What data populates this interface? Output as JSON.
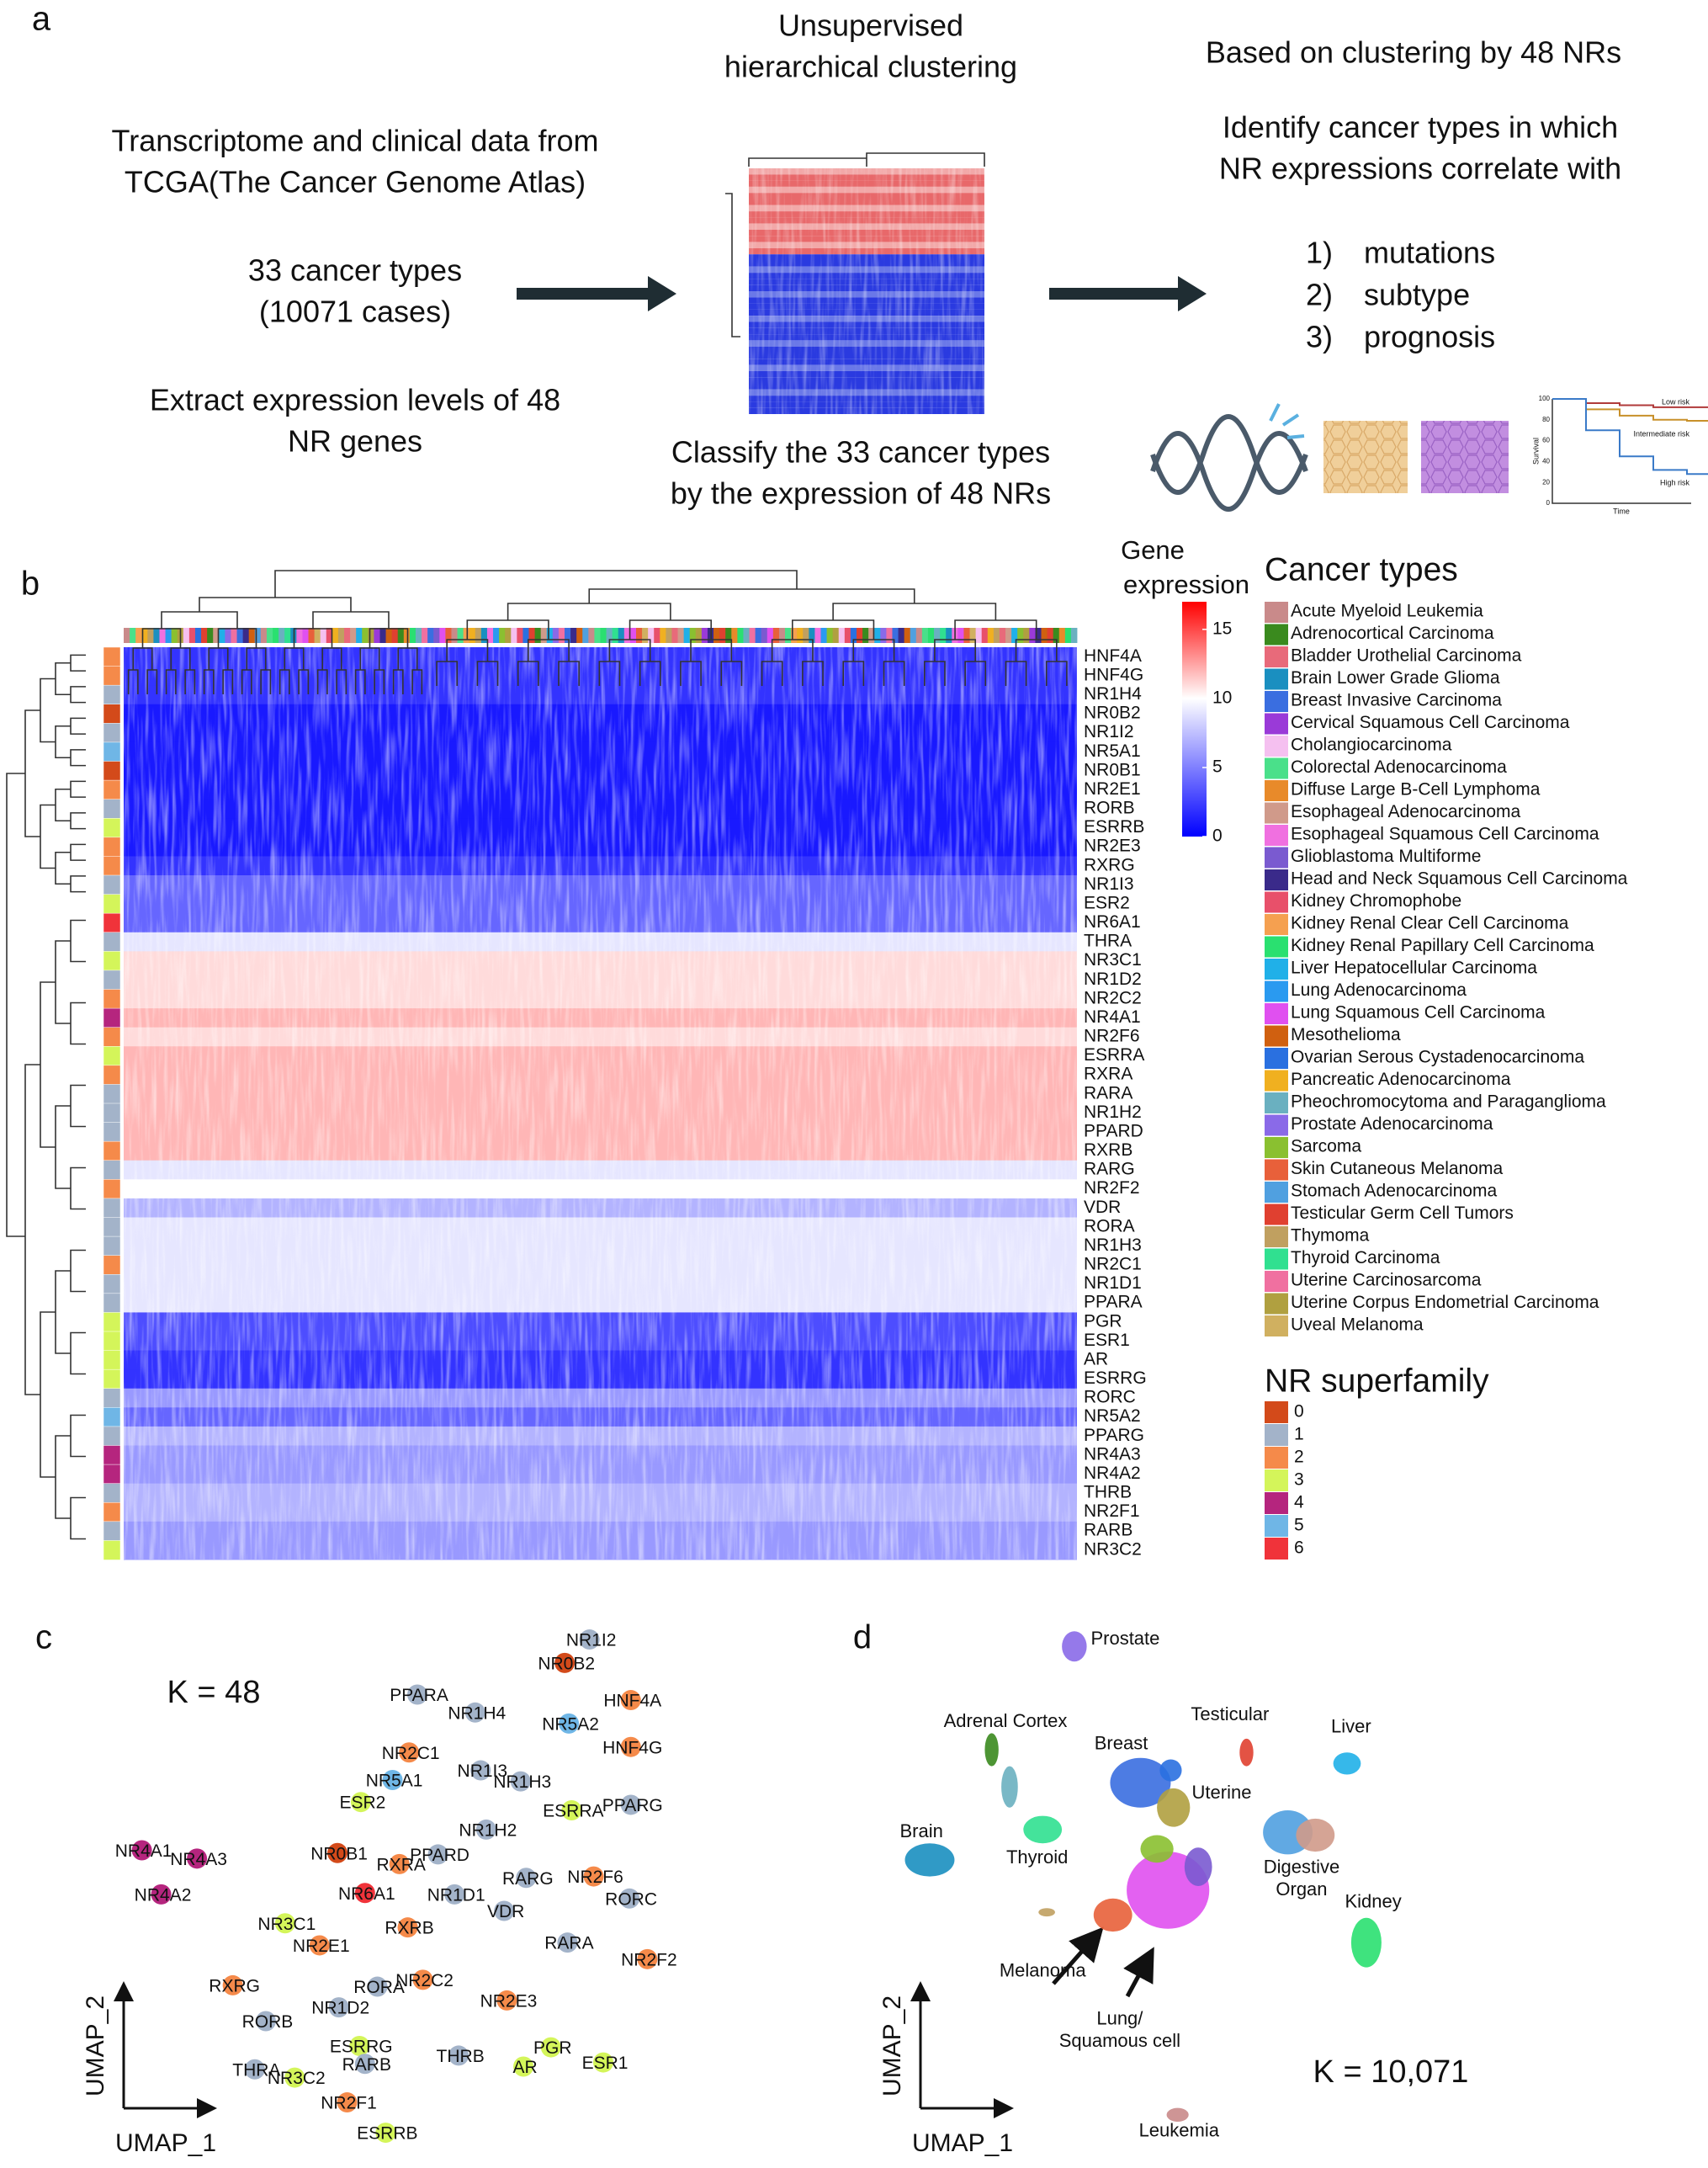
{
  "panel_a": {
    "label": "a",
    "left_texts": [
      [
        "Transcriptome and clinical data from",
        "TCGA(The Cancer Genome Atlas)"
      ],
      [
        "33 cancer types",
        "(10071 cases)"
      ],
      [
        "Extract expression levels of 48",
        "NR genes"
      ]
    ],
    "middle_top": [
      "Unsupervised",
      "hierarchical clustering"
    ],
    "middle_bottom": [
      "Classify the 33 cancer types",
      "by the expression of 48 NRs"
    ],
    "right_top": "Based on clustering by 48 NRs",
    "right_mid": [
      "Identify cancer types in which",
      "NR expressions correlate with"
    ],
    "outcomes": [
      {
        "num": "1)",
        "text": "mutations"
      },
      {
        "num": "2)",
        "text": "subtype"
      },
      {
        "num": "3)",
        "text": "prognosis"
      }
    ],
    "km_plot": {
      "y_label": "Survival",
      "x_label": "Time",
      "ylim": [
        0,
        100
      ],
      "yticks": [
        0,
        20,
        40,
        60,
        80,
        100
      ],
      "groups": [
        {
          "name": "Low risk",
          "color": "#b03a3a"
        },
        {
          "name": "Intermediate risk",
          "color": "#c8902a"
        },
        {
          "name": "High risk",
          "color": "#3a7ac8"
        }
      ]
    }
  },
  "panel_b": {
    "label": "b",
    "colorbar": {
      "title": [
        "Gene",
        "expression"
      ],
      "lim": [
        0,
        17
      ],
      "ticks": [
        0,
        5,
        10,
        15
      ]
    },
    "genes": [
      {
        "name": "HNF4A",
        "superfamily": 2,
        "level": 2
      },
      {
        "name": "HNF4G",
        "superfamily": 2,
        "level": 2
      },
      {
        "name": "NR1H4",
        "superfamily": 1,
        "level": 2
      },
      {
        "name": "NR0B2",
        "superfamily": 0,
        "level": 1
      },
      {
        "name": "NR1I2",
        "superfamily": 1,
        "level": 1
      },
      {
        "name": "NR5A1",
        "superfamily": 5,
        "level": 1
      },
      {
        "name": "NR0B1",
        "superfamily": 0,
        "level": 1
      },
      {
        "name": "NR2E1",
        "superfamily": 2,
        "level": 1
      },
      {
        "name": "RORB",
        "superfamily": 1,
        "level": 1
      },
      {
        "name": "ESRRB",
        "superfamily": 3,
        "level": 1
      },
      {
        "name": "NR2E3",
        "superfamily": 2,
        "level": 1
      },
      {
        "name": "RXRG",
        "superfamily": 2,
        "level": 2
      },
      {
        "name": "NR1I3",
        "superfamily": 1,
        "level": 4
      },
      {
        "name": "ESR2",
        "superfamily": 3,
        "level": 4
      },
      {
        "name": "NR6A1",
        "superfamily": 6,
        "level": 4
      },
      {
        "name": "THRA",
        "superfamily": 1,
        "level": 9
      },
      {
        "name": "NR3C1",
        "superfamily": 3,
        "level": 11
      },
      {
        "name": "NR1D2",
        "superfamily": 1,
        "level": 11
      },
      {
        "name": "NR2C2",
        "superfamily": 2,
        "level": 11
      },
      {
        "name": "NR4A1",
        "superfamily": 4,
        "level": 12
      },
      {
        "name": "NR2F6",
        "superfamily": 2,
        "level": 11
      },
      {
        "name": "ESRRA",
        "superfamily": 3,
        "level": 12
      },
      {
        "name": "RXRA",
        "superfamily": 2,
        "level": 12
      },
      {
        "name": "RARA",
        "superfamily": 1,
        "level": 12
      },
      {
        "name": "NR1H2",
        "superfamily": 1,
        "level": 12
      },
      {
        "name": "PPARD",
        "superfamily": 1,
        "level": 12
      },
      {
        "name": "RXRB",
        "superfamily": 2,
        "level": 12
      },
      {
        "name": "RARG",
        "superfamily": 1,
        "level": 9
      },
      {
        "name": "NR2F2",
        "superfamily": 2,
        "level": 10
      },
      {
        "name": "VDR",
        "superfamily": 1,
        "level": 7
      },
      {
        "name": "RORA",
        "superfamily": 1,
        "level": 9
      },
      {
        "name": "NR1H3",
        "superfamily": 1,
        "level": 9
      },
      {
        "name": "NR2C1",
        "superfamily": 2,
        "level": 9
      },
      {
        "name": "NR1D1",
        "superfamily": 1,
        "level": 9
      },
      {
        "name": "PPARA",
        "superfamily": 1,
        "level": 9
      },
      {
        "name": "PGR",
        "superfamily": 3,
        "level": 3
      },
      {
        "name": "ESR1",
        "superfamily": 3,
        "level": 3
      },
      {
        "name": "AR",
        "superfamily": 3,
        "level": 2
      },
      {
        "name": "ESRRG",
        "superfamily": 3,
        "level": 2
      },
      {
        "name": "RORC",
        "superfamily": 1,
        "level": 6
      },
      {
        "name": "NR5A2",
        "superfamily": 5,
        "level": 4
      },
      {
        "name": "PPARG",
        "superfamily": 1,
        "level": 7
      },
      {
        "name": "NR4A3",
        "superfamily": 4,
        "level": 6
      },
      {
        "name": "NR4A2",
        "superfamily": 4,
        "level": 6
      },
      {
        "name": "THRB",
        "superfamily": 1,
        "level": 7
      },
      {
        "name": "NR2F1",
        "superfamily": 2,
        "level": 7
      },
      {
        "name": "RARB",
        "superfamily": 1,
        "level": 6
      },
      {
        "name": "NR3C2",
        "superfamily": 3,
        "level": 6
      }
    ],
    "cancer_types_title": "Cancer types",
    "cancer_types": [
      {
        "name": "Acute Myeloid Leukemia",
        "color": "#c98a8a"
      },
      {
        "name": "Adrenocortical Carcinoma",
        "color": "#3a8a1e"
      },
      {
        "name": "Bladder Urothelial Carcinoma",
        "color": "#e86a7a"
      },
      {
        "name": "Brain Lower Grade Glioma",
        "color": "#1a8fc0"
      },
      {
        "name": "Breast Invasive Carcinoma",
        "color": "#3a6ee0"
      },
      {
        "name": "Cervical Squamous Cell Carcinoma",
        "color": "#9a3ad8"
      },
      {
        "name": "Cholangiocarcinoma",
        "color": "#f5c0f0"
      },
      {
        "name": "Colorectal Adenocarcinoma",
        "color": "#4ae08a"
      },
      {
        "name": "Diffuse Large B-Cell Lymphoma",
        "color": "#e88a2a"
      },
      {
        "name": "Esophageal Adenocarcinoma",
        "color": "#d09a8a"
      },
      {
        "name": "Esophageal Squamous Cell Carcinoma",
        "color": "#f070e0"
      },
      {
        "name": "Glioblastoma Multiforme",
        "color": "#7a5ad0"
      },
      {
        "name": "Head and Neck Squamous Cell Carcinoma",
        "color": "#3a2a8a"
      },
      {
        "name": "Kidney Chromophobe",
        "color": "#e8506a"
      },
      {
        "name": "Kidney Renal Clear Cell Carcinoma",
        "color": "#f5a050"
      },
      {
        "name": "Kidney Renal Papillary Cell Carcinoma",
        "color": "#2ae070"
      },
      {
        "name": "Liver Hepatocellular Carcinoma",
        "color": "#20b0e8"
      },
      {
        "name": "Lung Adenocarcinoma",
        "color": "#2a9af0"
      },
      {
        "name": "Lung Squamous Cell Carcinoma",
        "color": "#e050f0"
      },
      {
        "name": "Mesothelioma",
        "color": "#d06010"
      },
      {
        "name": "Ovarian Serous Cystadenocarcinoma",
        "color": "#2a70e0"
      },
      {
        "name": "Pancreatic Adenocarcinoma",
        "color": "#f0b020"
      },
      {
        "name": "Pheochromocytoma and Paraganglioma",
        "color": "#6ab0c0"
      },
      {
        "name": "Prostate Adenocarcinoma",
        "color": "#8a6ae8"
      },
      {
        "name": "Sarcoma",
        "color": "#8ac030"
      },
      {
        "name": "Skin Cutaneous Melanoma",
        "color": "#e8603a"
      },
      {
        "name": "Stomach Adenocarcinoma",
        "color": "#50a0e0"
      },
      {
        "name": "Testicular Germ Cell Tumors",
        "color": "#e04030"
      },
      {
        "name": "Thymoma",
        "color": "#c0a060"
      },
      {
        "name": "Thyroid Carcinoma",
        "color": "#30e090"
      },
      {
        "name": "Uterine Carcinosarcoma",
        "color": "#f070a0"
      },
      {
        "name": "Uterine Corpus Endometrial Carcinoma",
        "color": "#b0a040"
      },
      {
        "name": "Uveal Melanoma",
        "color": "#d0b060"
      }
    ],
    "superfamily_title": "NR superfamily",
    "superfamilies": [
      {
        "id": 0,
        "color": "#d34a1a"
      },
      {
        "id": 1,
        "color": "#a3b3c9"
      },
      {
        "id": 2,
        "color": "#f58a4a"
      },
      {
        "id": 3,
        "color": "#d4f55a"
      },
      {
        "id": 4,
        "color": "#b5257e"
      },
      {
        "id": 5,
        "color": "#6fb6e6"
      },
      {
        "id": 6,
        "color": "#f0333a"
      }
    ]
  },
  "panel_c": {
    "label": "c",
    "k_label": "K = 48",
    "x_label": "UMAP_1",
    "y_label": "UMAP_2",
    "nodes": [
      {
        "name": "NR1I2",
        "x": 33.8,
        "y": 34.0
      },
      {
        "name": "NR0B2",
        "x": 32.0,
        "y": 32.3
      },
      {
        "name": "PPARA",
        "x": 21.3,
        "y": 30.0
      },
      {
        "name": "NR1H4",
        "x": 25.5,
        "y": 28.7
      },
      {
        "name": "HNF4A",
        "x": 36.8,
        "y": 29.6
      },
      {
        "name": "NR5A2",
        "x": 32.3,
        "y": 27.9
      },
      {
        "name": "HNF4G",
        "x": 36.8,
        "y": 26.2
      },
      {
        "name": "NR2C1",
        "x": 20.7,
        "y": 25.8
      },
      {
        "name": "NR1I3",
        "x": 25.9,
        "y": 24.5
      },
      {
        "name": "NR5A1",
        "x": 19.5,
        "y": 23.8
      },
      {
        "name": "NR1H3",
        "x": 28.8,
        "y": 23.7
      },
      {
        "name": "ESR2",
        "x": 17.2,
        "y": 22.2
      },
      {
        "name": "ESRRA",
        "x": 32.5,
        "y": 21.6
      },
      {
        "name": "PPARG",
        "x": 36.8,
        "y": 22.0
      },
      {
        "name": "NR1H2",
        "x": 26.3,
        "y": 20.2
      },
      {
        "name": "NR4A1",
        "x": 1.3,
        "y": 18.7
      },
      {
        "name": "NR4A3",
        "x": 5.3,
        "y": 18.1
      },
      {
        "name": "NR0B1",
        "x": 15.5,
        "y": 18.5
      },
      {
        "name": "PPARD",
        "x": 22.8,
        "y": 18.4
      },
      {
        "name": "RXRA",
        "x": 20.0,
        "y": 17.7
      },
      {
        "name": "NR2F6",
        "x": 34.1,
        "y": 16.8
      },
      {
        "name": "RARG",
        "x": 29.2,
        "y": 16.7
      },
      {
        "name": "NR4A2",
        "x": 2.7,
        "y": 15.5
      },
      {
        "name": "NR6A1",
        "x": 17.5,
        "y": 15.6
      },
      {
        "name": "NR1D1",
        "x": 24.0,
        "y": 15.5
      },
      {
        "name": "RORC",
        "x": 36.7,
        "y": 15.2
      },
      {
        "name": "VDR",
        "x": 27.6,
        "y": 14.3
      },
      {
        "name": "NR3C1",
        "x": 11.7,
        "y": 13.4
      },
      {
        "name": "RXRB",
        "x": 20.6,
        "y": 13.1
      },
      {
        "name": "NR2E1",
        "x": 14.2,
        "y": 11.8
      },
      {
        "name": "RARA",
        "x": 32.2,
        "y": 12.0
      },
      {
        "name": "NR2F2",
        "x": 38.0,
        "y": 10.8
      },
      {
        "name": "NR2C2",
        "x": 21.7,
        "y": 9.3
      },
      {
        "name": "RORA",
        "x": 18.4,
        "y": 8.8
      },
      {
        "name": "RXRG",
        "x": 7.9,
        "y": 8.9
      },
      {
        "name": "NR2E3",
        "x": 27.8,
        "y": 7.8
      },
      {
        "name": "NR1D2",
        "x": 15.6,
        "y": 7.3
      },
      {
        "name": "RORB",
        "x": 10.3,
        "y": 6.3
      },
      {
        "name": "ESRRG",
        "x": 17.1,
        "y": 4.5
      },
      {
        "name": "PGR",
        "x": 31.0,
        "y": 4.4
      },
      {
        "name": "RARB",
        "x": 17.5,
        "y": 3.2
      },
      {
        "name": "THRB",
        "x": 24.3,
        "y": 3.8
      },
      {
        "name": "AR",
        "x": 29.0,
        "y": 3.0
      },
      {
        "name": "ESR1",
        "x": 34.8,
        "y": 3.3
      },
      {
        "name": "THRA",
        "x": 9.5,
        "y": 2.8
      },
      {
        "name": "NR3C2",
        "x": 12.4,
        "y": 2.2
      },
      {
        "name": "NR2F1",
        "x": 16.2,
        "y": 0.4
      },
      {
        "name": "ESRRB",
        "x": 19.0,
        "y": -1.8
      }
    ]
  },
  "panel_d": {
    "label": "d",
    "k_label": "K = 10,071",
    "x_label": "UMAP_1",
    "y_label": "UMAP_2",
    "clusters": [
      [
        "Prostate"
      ],
      [
        "Adrenal Cortex"
      ],
      [
        "Testicular"
      ],
      [
        "Liver"
      ],
      [
        "Breast"
      ],
      [
        "Uterine"
      ],
      [
        "Brain"
      ],
      [
        "Thyroid"
      ],
      [
        "Digestive",
        "Organ"
      ],
      [
        "Kidney"
      ],
      [
        "Melanoma"
      ],
      [
        "Lung/",
        "Squamous cell"
      ],
      [
        "Leukemia"
      ]
    ]
  }
}
